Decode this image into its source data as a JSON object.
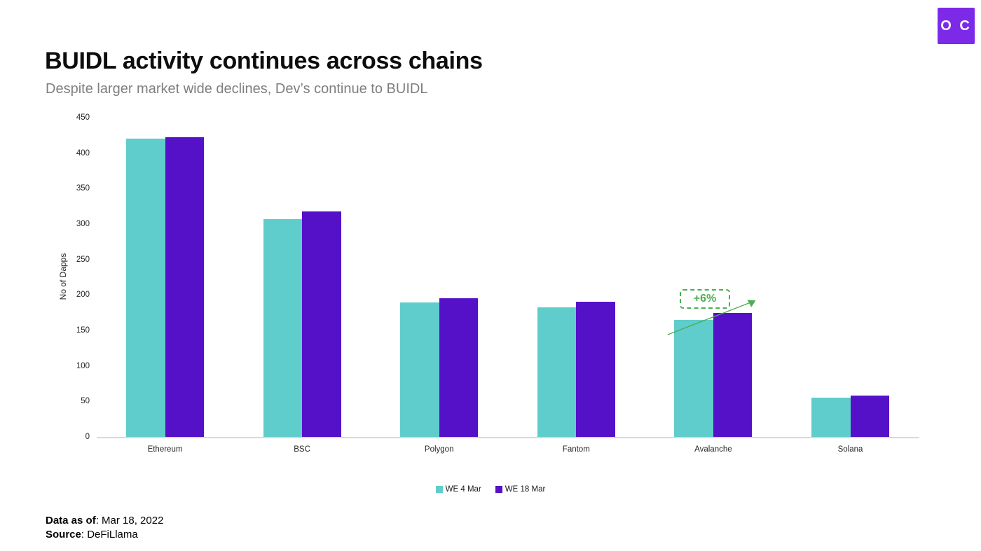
{
  "header": {
    "title": "BUIDL activity continues across chains",
    "subtitle": "Despite larger market wide declines, Dev’s continue to BUIDL"
  },
  "logo": {
    "text": "O C"
  },
  "chart_data": {
    "type": "bar",
    "title": "BUIDL activity continues across chains",
    "xlabel": "",
    "ylabel": "No of Dapps",
    "ylim": [
      0,
      450
    ],
    "yticks": [
      0,
      50,
      100,
      150,
      200,
      250,
      300,
      350,
      400,
      450
    ],
    "grid": false,
    "legend_position": "bottom",
    "categories": [
      "Ethereum",
      "BSC",
      "Polygon",
      "Fantom",
      "Avalanche",
      "Solana"
    ],
    "series": [
      {
        "name": "WE 4 Mar",
        "color": "#5fcdcb",
        "values": [
          420,
          307,
          189,
          183,
          165,
          55
        ]
      },
      {
        "name": "WE 18 Mar",
        "color": "#5511c8",
        "values": [
          422,
          318,
          195,
          190,
          175,
          58
        ]
      }
    ],
    "annotation": {
      "label": "+6%",
      "target_category": "Avalanche",
      "color": "#4caf50"
    }
  },
  "footer": {
    "data_as_of_label": "Data as of",
    "data_as_of_value": ": Mar 18, 2022",
    "source_label": "Source",
    "source_value": ": DeFiLlama"
  },
  "colors": {
    "accent_teal": "#5fcdcb",
    "accent_purple": "#5511c8",
    "logo_purple": "#7c2ae8",
    "annotation_green": "#4caf50",
    "axis_line": "#d9d9d9",
    "subtitle_gray": "#7f7f7f"
  }
}
